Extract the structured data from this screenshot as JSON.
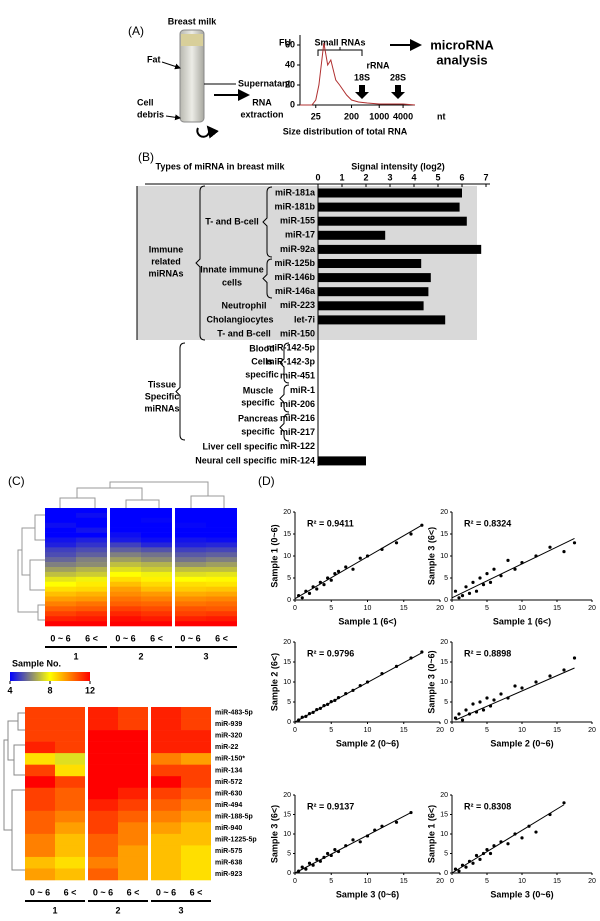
{
  "panels": {
    "a": "(A)",
    "b": "(B)",
    "c": "(C)",
    "d": "(D)"
  },
  "panel_a": {
    "photo_title": "Breast milk",
    "fat": "Fat",
    "supernatant": "Supernatant",
    "cell_debris": [
      "Cell",
      "debris"
    ],
    "rna_extraction": [
      "RNA",
      "extraction"
    ],
    "small_rnas": "Small RNAs",
    "microrna_analysis": [
      "microRNA",
      "analysis"
    ],
    "rrna": "rRNA",
    "rrna_18s": "18S",
    "rrna_28s": "28S",
    "caption": "Size distribution of total RNA"
  },
  "panel_b": {
    "immune": [
      "Immune",
      "related",
      "miRNAs"
    ],
    "t_b_cell": "T- and B-cell",
    "innate": [
      "Innate immune",
      "cells"
    ],
    "neutrophil": "Neutrophil",
    "cholangiocytes": "Cholangiocytes",
    "t_b_cell_2": "T- and B-cell",
    "tissue": [
      "Tissue",
      "Specific",
      "miRNAs"
    ],
    "blood": [
      "Blood",
      "Cells",
      "specific"
    ],
    "muscle": [
      "Muscle",
      "specific"
    ],
    "pancreas": [
      "Pancreas",
      "specific"
    ],
    "liver": "Liver cell specific",
    "neural": "Neural cell specific"
  },
  "chart_data": [
    {
      "type": "line",
      "ylabel": "FU",
      "xunit": "nt",
      "xscale": "log",
      "xlim": [
        10,
        8000
      ],
      "xticks": [
        25,
        200,
        1000,
        4000
      ],
      "ylim": [
        0,
        70
      ],
      "yticks": [
        0,
        20,
        40,
        60
      ],
      "color": "#b03030",
      "x": [
        10,
        20,
        25,
        30,
        40,
        50,
        60,
        80,
        100,
        150,
        200,
        300,
        500,
        1000,
        2000,
        4000,
        8000
      ],
      "values": [
        0,
        0,
        5,
        20,
        62,
        40,
        45,
        25,
        20,
        10,
        5,
        3,
        2,
        1,
        1,
        1,
        0
      ]
    },
    {
      "type": "bar",
      "orientation": "horizontal",
      "category_axis_title": "Types of miRNA in breast milk",
      "value_axis_title": "Signal intensity (log2)",
      "xlim": [
        0,
        7
      ],
      "xticks": [
        0,
        1,
        2,
        3,
        4,
        5,
        6,
        7
      ],
      "color": "#000000",
      "categories": [
        "miR-181a",
        "miR-181b",
        "miR-155",
        "miR-17",
        "miR-92a",
        "miR-125b",
        "miR-146b",
        "miR-146a",
        "miR-223",
        "let-7i",
        "miR-150",
        "miR-142-5p",
        "miR-142-3p",
        "miR-451",
        "miR-1",
        "miR-206",
        "miR-216",
        "miR-217",
        "miR-122",
        "miR-124"
      ],
      "values": [
        6.0,
        5.9,
        6.2,
        2.8,
        6.8,
        4.3,
        4.7,
        4.6,
        4.4,
        5.3,
        null,
        null,
        null,
        null,
        null,
        null,
        null,
        null,
        null,
        2.0
      ]
    },
    {
      "type": "heatmap",
      "columns": [
        "0 ~ 6",
        "6 <",
        "0 ~ 6",
        "6 <",
        "0 ~ 6",
        "6 <"
      ],
      "column_groups": [
        "1",
        "2",
        "3"
      ],
      "color_scale": {
        "title": "Sample No.",
        "lim": [
          4,
          12
        ],
        "ticks": [
          4,
          8,
          12
        ],
        "colors": [
          "#0000ff",
          "#ffff00",
          "#ff0000"
        ]
      },
      "values": [
        [
          4,
          4,
          4,
          4,
          4,
          4
        ],
        [
          4,
          4.2,
          4,
          4,
          4,
          4
        ],
        [
          4,
          4,
          4,
          4.1,
          4,
          4
        ],
        [
          4.2,
          4,
          4,
          4,
          4.1,
          4
        ],
        [
          4,
          4.3,
          4,
          4,
          4,
          4
        ],
        [
          4,
          4,
          4.2,
          4,
          4,
          4
        ],
        [
          4.3,
          4.5,
          4.4,
          4.2,
          4.3,
          4.2
        ],
        [
          4.5,
          4.8,
          5,
          4.6,
          4.5,
          4.6
        ],
        [
          5,
          5.2,
          5.5,
          5.3,
          5,
          5.1
        ],
        [
          5.2,
          5.5,
          6,
          5.8,
          5.4,
          5.5
        ],
        [
          5.6,
          6,
          6.5,
          6.2,
          5.8,
          6
        ],
        [
          6,
          6.2,
          7,
          6.8,
          6.3,
          6.5
        ],
        [
          6.5,
          6.8,
          7.5,
          7.2,
          7,
          7
        ],
        [
          7,
          7.2,
          8,
          7.8,
          7.5,
          7.6
        ],
        [
          7.6,
          7.8,
          8.5,
          8.2,
          8,
          8.1
        ],
        [
          8,
          8.3,
          9,
          8.6,
          8.5,
          8.4
        ],
        [
          8.5,
          8.6,
          9.5,
          9,
          8.8,
          8.9
        ],
        [
          9,
          9.2,
          9.8,
          9.6,
          9.3,
          9.4
        ],
        [
          9.5,
          9.6,
          10.2,
          10,
          9.8,
          9.9
        ],
        [
          10,
          10.2,
          10.5,
          10.4,
          10.2,
          10.3
        ],
        [
          10.5,
          10.6,
          11,
          10.8,
          10.7,
          10.6
        ],
        [
          11,
          11.2,
          11.4,
          11.2,
          11,
          11.1
        ],
        [
          11.5,
          11.6,
          11.8,
          11.6,
          11.5,
          11.6
        ],
        [
          12,
          12,
          12,
          12,
          12,
          12
        ]
      ]
    },
    {
      "type": "heatmap",
      "columns": [
        "0 ~ 6",
        "6 <",
        "0 ~ 6",
        "6 <",
        "0 ~ 6",
        "6 <"
      ],
      "column_groups": [
        "1",
        "2",
        "3"
      ],
      "color_scale": {
        "lim": [
          4,
          12
        ],
        "colors": [
          "#0000ff",
          "#ffff00",
          "#ff0000"
        ]
      },
      "rows": [
        "miR-483-5p",
        "miR-939",
        "miR-320",
        "miR-22",
        "miR-150*",
        "miR-134",
        "miR-572",
        "miR-630",
        "miR-494",
        "miR-188-5p",
        "miR-940",
        "miR-1225-5p",
        "miR-575",
        "miR-638",
        "miR-923"
      ],
      "values": [
        [
          11,
          11,
          11.5,
          11,
          11.5,
          11
        ],
        [
          11,
          11,
          11.5,
          11,
          11.5,
          11
        ],
        [
          11,
          11,
          12,
          12,
          11.5,
          11.5
        ],
        [
          11.5,
          11,
          12,
          12,
          11.5,
          11.5
        ],
        [
          8.5,
          7.5,
          12,
          12,
          10,
          9.5
        ],
        [
          11,
          8.5,
          12,
          12,
          11,
          11
        ],
        [
          12,
          11,
          12,
          12,
          12,
          11
        ],
        [
          11,
          10.5,
          12,
          11.5,
          11,
          10.5
        ],
        [
          11,
          10.5,
          11.5,
          11,
          10.5,
          10
        ],
        [
          10.5,
          10,
          11,
          10.5,
          10,
          9.5
        ],
        [
          10.5,
          9.5,
          11,
          10,
          9.5,
          9
        ],
        [
          10,
          9,
          10.5,
          10,
          9,
          9
        ],
        [
          10,
          9,
          10.5,
          9.5,
          9,
          8.5
        ],
        [
          9,
          8.5,
          10,
          9.5,
          9,
          8.5
        ],
        [
          9.5,
          9,
          10.5,
          9.5,
          9,
          8.5
        ]
      ]
    },
    {
      "type": "scatter",
      "xlabel": "Sample 1 (6<)",
      "ylabel": "Sample 1 (0~6)",
      "annotation": "R² = 0.9411",
      "xlim": [
        0,
        20
      ],
      "ylim": [
        0,
        20
      ],
      "xticks": [
        0,
        5,
        10,
        15,
        20
      ],
      "yticks": [
        0,
        5,
        10,
        15,
        20
      ],
      "color": "#000000",
      "x": [
        0.5,
        1,
        1.5,
        2,
        2.5,
        3,
        3.5,
        4,
        4.5,
        5,
        5.5,
        6,
        7,
        8,
        9,
        10,
        12,
        14,
        16,
        17.5
      ],
      "values": [
        1,
        0.5,
        2,
        1.5,
        3,
        2.5,
        4,
        3.5,
        5,
        4.5,
        6,
        6.5,
        7.5,
        7,
        9.5,
        10,
        11.5,
        13,
        15,
        17
      ],
      "trendline": {
        "x": [
          0,
          17.5
        ],
        "values": [
          0.3,
          17
        ]
      }
    },
    {
      "type": "scatter",
      "xlabel": "Sample 1 (6<)",
      "ylabel": "Sample 3 (6<)",
      "annotation": "R² = 0.8324",
      "xlim": [
        0,
        20
      ],
      "ylim": [
        0,
        20
      ],
      "xticks": [
        0,
        5,
        10,
        15,
        20
      ],
      "yticks": [
        0,
        5,
        10,
        15,
        20
      ],
      "color": "#000000",
      "x": [
        0.5,
        1,
        1.5,
        2,
        2.5,
        3,
        3.5,
        4,
        4.5,
        5,
        5.5,
        6,
        7,
        8,
        9,
        10,
        12,
        14,
        16,
        17.5
      ],
      "values": [
        2,
        0.5,
        1,
        3,
        1.5,
        4,
        2,
        5,
        3.5,
        6,
        4,
        7,
        5.5,
        9,
        7,
        8.5,
        10,
        12,
        11,
        13
      ],
      "trendline": {
        "x": [
          0,
          17.5
        ],
        "values": [
          0.5,
          14
        ]
      }
    },
    {
      "type": "scatter",
      "xlabel": "Sample 2 (0~6)",
      "ylabel": "Sample 2 (6<)",
      "annotation": "R² = 0.9796",
      "xlim": [
        0,
        20
      ],
      "ylim": [
        0,
        20
      ],
      "xticks": [
        0,
        5,
        10,
        15,
        20
      ],
      "yticks": [
        0,
        5,
        10,
        15,
        20
      ],
      "color": "#000000",
      "x": [
        0.5,
        1,
        1.5,
        2,
        2.5,
        3,
        3.5,
        4,
        4.5,
        5,
        5.5,
        6,
        7,
        8,
        9,
        10,
        12,
        14,
        16,
        17.5
      ],
      "values": [
        0.5,
        1.2,
        1.4,
        2.1,
        2.4,
        3.1,
        3.4,
        4.1,
        4.4,
        5.1,
        5.4,
        6.1,
        7.1,
        7.9,
        9.1,
        10,
        12.1,
        13.9,
        16,
        17.5
      ],
      "trendline": {
        "x": [
          0,
          17.5
        ],
        "values": [
          0,
          17.3
        ]
      }
    },
    {
      "type": "scatter",
      "xlabel": "Sample 2 (0~6)",
      "ylabel": "Sample 3 (0~6)",
      "annotation": "R² = 0.8898",
      "xlim": [
        0,
        20
      ],
      "ylim": [
        0,
        20
      ],
      "xticks": [
        0,
        5,
        10,
        15,
        20
      ],
      "yticks": [
        0,
        5,
        10,
        15,
        20
      ],
      "color": "#000000",
      "x": [
        0.5,
        1,
        1.5,
        2,
        2.5,
        3,
        3.5,
        4,
        4.5,
        5,
        5.5,
        6,
        7,
        8,
        9,
        10,
        12,
        14,
        16,
        17.5
      ],
      "values": [
        1,
        2,
        0.5,
        3,
        2,
        4.5,
        2.5,
        5,
        3,
        6,
        4,
        5.5,
        7,
        6,
        9,
        8.5,
        10,
        11.5,
        13,
        16
      ],
      "trendline": {
        "x": [
          0.5,
          17.5
        ],
        "values": [
          0.5,
          13.5
        ]
      }
    },
    {
      "type": "scatter",
      "xlabel": "Sample 3 (0~6)",
      "ylabel": "Sample 3 (6<)",
      "annotation": "R² = 0.9137",
      "xlim": [
        0,
        20
      ],
      "ylim": [
        0,
        20
      ],
      "xticks": [
        0,
        5,
        10,
        15,
        20
      ],
      "yticks": [
        0,
        5,
        10,
        15,
        20
      ],
      "color": "#000000",
      "x": [
        0.5,
        1,
        1.5,
        2,
        2.5,
        3,
        3.5,
        4,
        4.5,
        5,
        5.5,
        6,
        7,
        8,
        9,
        10,
        11,
        12,
        14,
        16
      ],
      "values": [
        0.5,
        1.5,
        1,
        2.5,
        2,
        3.5,
        3,
        4,
        5,
        4.5,
        6,
        5.5,
        7,
        8.5,
        8,
        9.5,
        11,
        12,
        13,
        15.5
      ],
      "trendline": {
        "x": [
          0,
          16
        ],
        "values": [
          0,
          15.5
        ]
      }
    },
    {
      "type": "scatter",
      "xlabel": "Sample 3 (0~6)",
      "ylabel": "Sample 1 (6<)",
      "annotation": "R² = 0.8308",
      "xlim": [
        0,
        20
      ],
      "ylim": [
        0,
        20
      ],
      "xticks": [
        0,
        5,
        10,
        15,
        20
      ],
      "yticks": [
        0,
        5,
        10,
        15,
        20
      ],
      "color": "#000000",
      "x": [
        0.5,
        1,
        1.5,
        2,
        2.5,
        3,
        3.5,
        4,
        4.5,
        5,
        5.5,
        6,
        7,
        8,
        9,
        10,
        11,
        12,
        14,
        16
      ],
      "values": [
        1,
        0.5,
        2,
        1.5,
        3,
        2.5,
        4.5,
        3.5,
        5,
        6,
        5,
        7,
        8,
        7.5,
        10,
        9,
        12,
        10.5,
        15,
        18
      ],
      "trendline": {
        "x": [
          0,
          16
        ],
        "values": [
          0,
          17.5
        ]
      }
    }
  ]
}
